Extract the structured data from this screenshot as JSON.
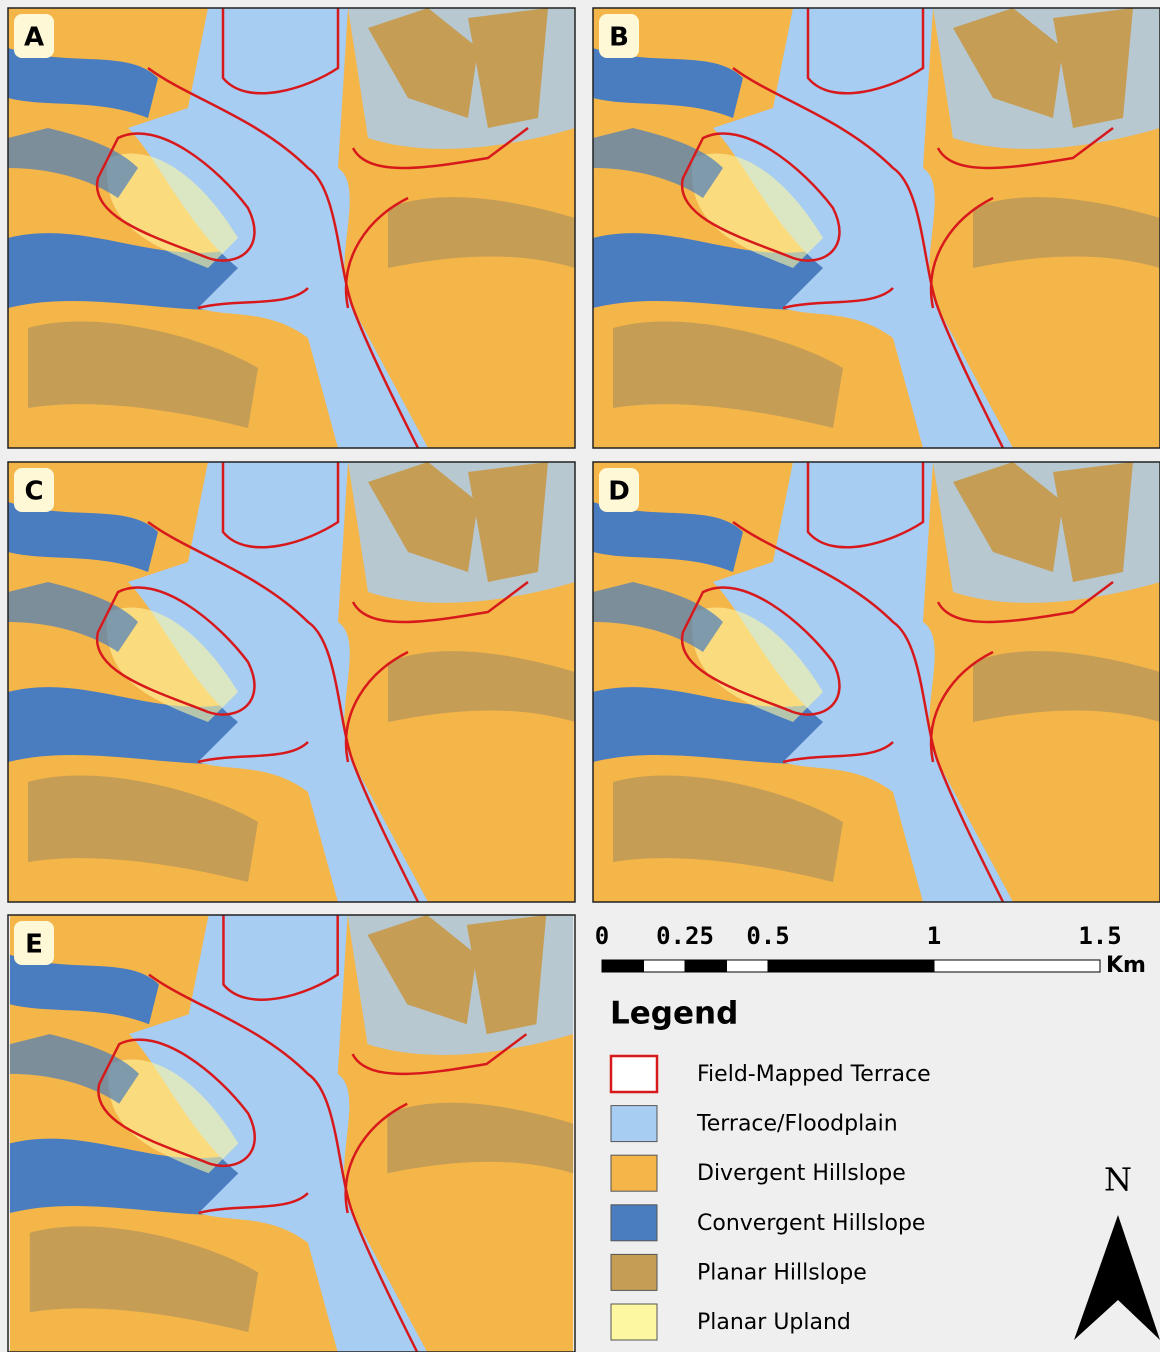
{
  "panels": [
    {
      "label": "A"
    },
    {
      "label": "B"
    },
    {
      "label": "C"
    },
    {
      "label": "D"
    },
    {
      "label": "E"
    }
  ],
  "scale_bar": {
    "ticks": [
      0,
      0.25,
      0.5,
      1,
      1.5
    ],
    "unit": "Km"
  },
  "legend": {
    "title": "Legend",
    "items": [
      {
        "label": "Field-Mapped Terrace",
        "color": "#d7191c"
      },
      {
        "label": "Terrace/Floodplain",
        "color": "#a8cdf3"
      },
      {
        "label": "Divergent Hillslope",
        "color": "#f4b549"
      },
      {
        "label": "Convergent Hillslope",
        "color": "#4a7dbf"
      },
      {
        "label": "Planar Hillslope",
        "color": "#c59d55"
      },
      {
        "label": "Planar Upland",
        "color": "#fdf7a2"
      }
    ]
  },
  "north": "N"
}
